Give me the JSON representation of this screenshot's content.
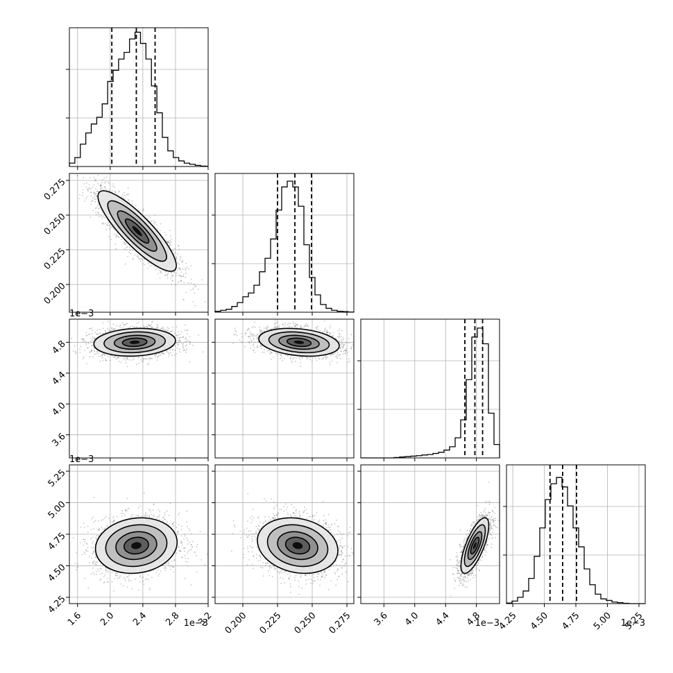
{
  "chart_data": {
    "type": "corner",
    "title": "",
    "quantiles": [
      0.16,
      0.5,
      0.84
    ],
    "grid": true,
    "colors": {
      "axes": "#000000",
      "grid": "#b0b0b0",
      "scatter": "#7f7f7f",
      "contour": "#000000",
      "density_dark": "#000000"
    },
    "parameters": [
      {
        "index": 0,
        "name": "",
        "range": [
          1.5,
          3.2
        ],
        "ticks": [
          1.6,
          2.0,
          2.4,
          2.8,
          3.2
        ],
        "tick_labels": [
          "1.6",
          "2.0",
          "2.4",
          "2.8",
          "3.2"
        ],
        "offset_label": "1e−3",
        "quantile_values": [
          2.02,
          2.32,
          2.55
        ],
        "histogram": {
          "edges": [
            1.5,
            1.567,
            1.634,
            1.701,
            1.768,
            1.835,
            1.902,
            1.969,
            2.036,
            2.103,
            2.17,
            2.237,
            2.304,
            2.371,
            2.438,
            2.505,
            2.572,
            2.639,
            2.706,
            2.773,
            2.84,
            2.907,
            2.974,
            3.041,
            3.108,
            3.175
          ],
          "counts": [
            1.5,
            4,
            10,
            15,
            19,
            22,
            28,
            38,
            43,
            48,
            51,
            57,
            60,
            55,
            48,
            36,
            24,
            13,
            7,
            4,
            2.5,
            1.5,
            1,
            0.5,
            0.2
          ],
          "ymax": 62
        }
      },
      {
        "index": 1,
        "name": "",
        "range": [
          0.18,
          0.28
        ],
        "ticks": [
          0.2,
          0.225,
          0.25,
          0.275
        ],
        "tick_labels": [
          "0.200",
          "0.225",
          "0.250",
          "0.275"
        ],
        "offset_label": "",
        "quantile_values": [
          0.225,
          0.2375,
          0.2495
        ],
        "histogram": {
          "edges": [
            0.18,
            0.184,
            0.188,
            0.192,
            0.196,
            0.2,
            0.204,
            0.208,
            0.212,
            0.216,
            0.22,
            0.224,
            0.228,
            0.232,
            0.236,
            0.24,
            0.244,
            0.248,
            0.252,
            0.256,
            0.26,
            0.264,
            0.268,
            0.272,
            0.276,
            0.28
          ],
          "counts": [
            0.5,
            1,
            1.5,
            3,
            5,
            8,
            10,
            14,
            21,
            28,
            38,
            53,
            65,
            68,
            65,
            55,
            35,
            18,
            9,
            4,
            2,
            1,
            0.5,
            0.3,
            0.1
          ],
          "ymax": 72
        }
      },
      {
        "index": 2,
        "name": "",
        "range": [
          3.3,
          5.1
        ],
        "ticks": [
          3.6,
          4.0,
          4.4,
          4.8
        ],
        "tick_labels": [
          "3.6",
          "4.0",
          "4.4",
          "4.8"
        ],
        "offset_label": "1e−3",
        "quantile_values": [
          4.65,
          4.78,
          4.88
        ],
        "histogram": {
          "edges": [
            3.3,
            3.372,
            3.444,
            3.516,
            3.588,
            3.66,
            3.732,
            3.804,
            3.876,
            3.948,
            4.02,
            4.092,
            4.164,
            4.236,
            4.308,
            4.38,
            4.452,
            4.524,
            4.596,
            4.668,
            4.74,
            4.812,
            4.884,
            4.956,
            5.028,
            5.1
          ],
          "counts": [
            0,
            0,
            0,
            0,
            0,
            0,
            0.2,
            0.4,
            0.6,
            0.8,
            1,
            1.3,
            1.5,
            2,
            2.5,
            3.5,
            5,
            9,
            17,
            35,
            54,
            58,
            51,
            20,
            6
          ],
          "ymax": 62
        }
      },
      {
        "index": 3,
        "name": "",
        "range": [
          4.2,
          5.3
        ],
        "ticks": [
          4.25,
          4.5,
          4.75,
          5.0,
          5.25
        ],
        "tick_labels": [
          "4.25",
          "4.50",
          "4.75",
          "5.00",
          "5.25"
        ],
        "offset_label": "1e−3",
        "quantile_values": [
          4.545,
          4.645,
          4.755
        ],
        "histogram": {
          "edges": [
            4.2,
            4.244,
            4.288,
            4.332,
            4.376,
            4.42,
            4.464,
            4.508,
            4.552,
            4.596,
            4.64,
            4.684,
            4.728,
            4.772,
            4.816,
            4.86,
            4.904,
            4.948,
            4.992,
            5.036,
            5.08,
            5.124,
            5.168,
            5.212,
            5.256,
            5.3
          ],
          "counts": [
            0.2,
            0.8,
            2,
            4,
            8,
            15,
            24,
            33,
            38,
            40,
            37,
            31,
            24,
            18,
            11,
            6,
            3,
            1.5,
            1,
            0.5,
            0.3,
            0.1,
            0,
            0,
            0
          ],
          "ymax": 44
        }
      }
    ],
    "pairs": [
      {
        "x_param": 0,
        "y_param": 1,
        "mean": [
          2.33,
          0.2385
        ],
        "sd": [
          0.24,
          0.0145
        ],
        "corr": -0.86,
        "n_points": 2200,
        "density_levels": [
          "#e5e5e5",
          "#b9b9b9",
          "#888888",
          "#555555",
          "#000000"
        ]
      },
      {
        "x_param": 0,
        "y_param": 2,
        "mean": [
          2.3,
          4.8
        ],
        "sd": [
          0.25,
          0.09
        ],
        "corr": 0.12,
        "n_points": 2200,
        "density_levels": [
          "#e5e5e5",
          "#b9b9b9",
          "#888888",
          "#555555",
          "#000000"
        ]
      },
      {
        "x_param": 1,
        "y_param": 2,
        "mean": [
          0.2405,
          4.8
        ],
        "sd": [
          0.0145,
          0.09
        ],
        "corr": -0.25,
        "n_points": 2200,
        "density_levels": [
          "#e5e5e5",
          "#b9b9b9",
          "#888888",
          "#555555",
          "#000000"
        ]
      },
      {
        "x_param": 0,
        "y_param": 3,
        "mean": [
          2.32,
          4.66
        ],
        "sd": [
          0.25,
          0.11
        ],
        "corr": 0.12,
        "n_points": 2200,
        "density_levels": [
          "#e5e5e5",
          "#b9b9b9",
          "#888888",
          "#555555",
          "#000000"
        ]
      },
      {
        "x_param": 1,
        "y_param": 3,
        "mean": [
          0.2395,
          4.66
        ],
        "sd": [
          0.0145,
          0.11
        ],
        "corr": -0.18,
        "n_points": 2200,
        "density_levels": [
          "#e5e5e5",
          "#b9b9b9",
          "#888888",
          "#555555",
          "#000000"
        ]
      },
      {
        "x_param": 2,
        "y_param": 3,
        "mean": [
          4.78,
          4.66
        ],
        "sd": [
          0.09,
          0.11
        ],
        "corr": 0.72,
        "n_points": 2200,
        "density_levels": [
          "#e5e5e5",
          "#b9b9b9",
          "#888888",
          "#555555",
          "#000000"
        ]
      }
    ]
  }
}
